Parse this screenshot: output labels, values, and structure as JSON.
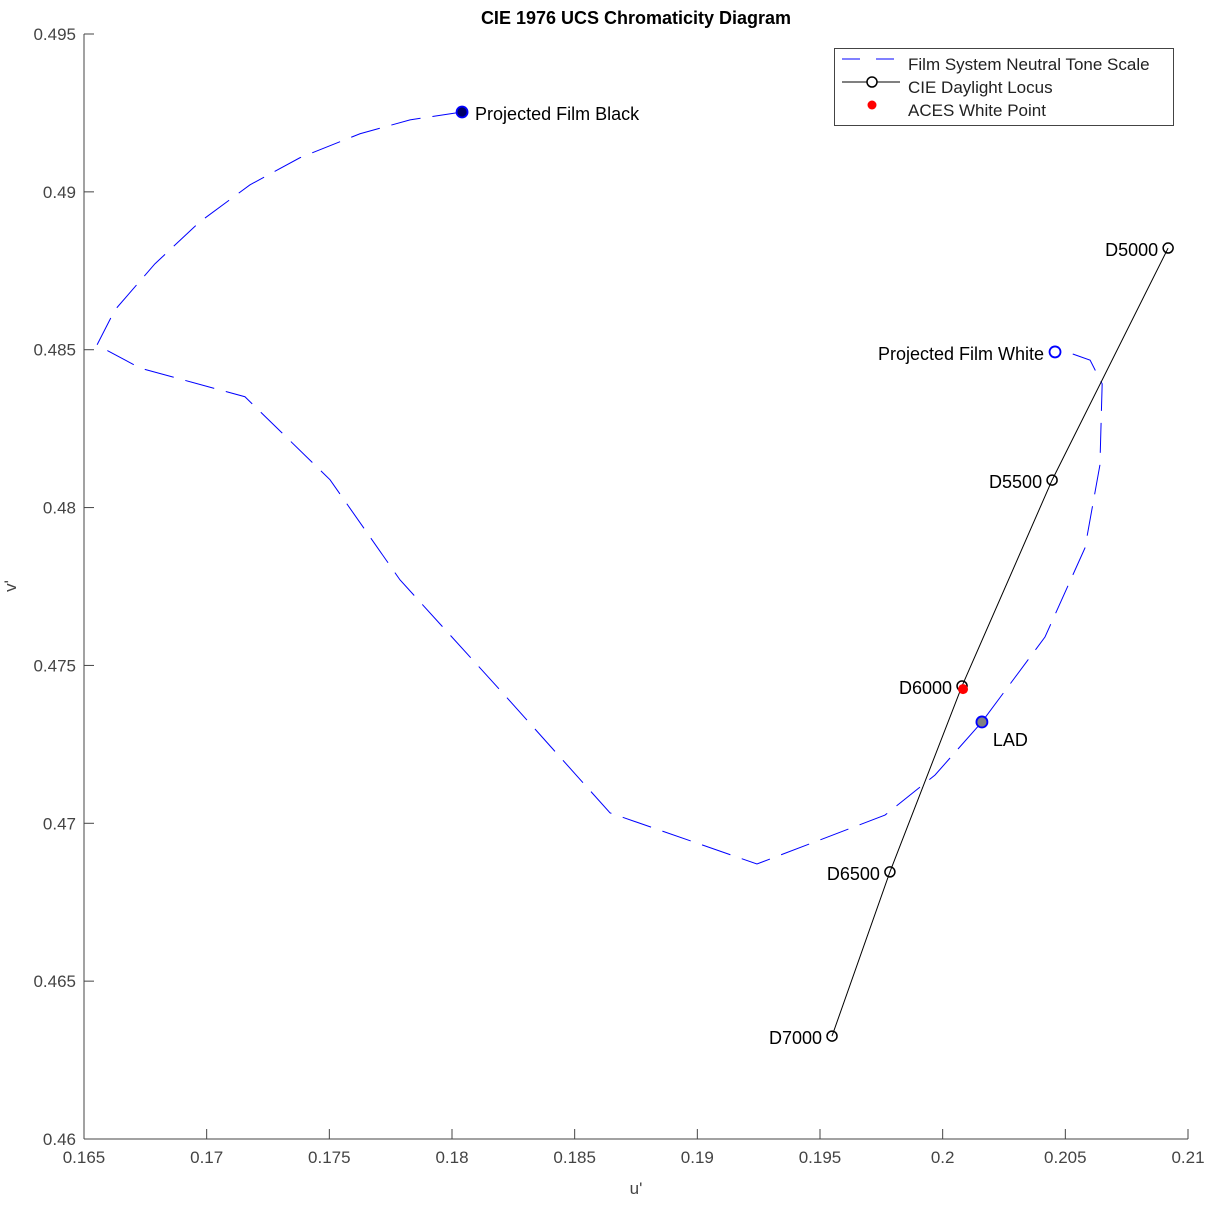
{
  "chart_data": {
    "type": "line",
    "title": "CIE 1976 UCS Chromaticity Diagram",
    "xlabel": "u'",
    "ylabel": "v'",
    "xlim": [
      0.165,
      0.21
    ],
    "ylim": [
      0.46,
      0.495
    ],
    "xticks": [
      0.165,
      0.17,
      0.175,
      0.18,
      0.185,
      0.19,
      0.195,
      0.2,
      0.205,
      0.21
    ],
    "xtick_labels": [
      "0.165",
      "0.17",
      "0.175",
      "0.18",
      "0.185",
      "0.19",
      "0.195",
      "0.2",
      "0.205",
      "0.21"
    ],
    "yticks": [
      0.46,
      0.465,
      0.47,
      0.475,
      0.48,
      0.485,
      0.49,
      0.495
    ],
    "ytick_labels": [
      "0.46",
      "0.465",
      "0.47",
      "0.475",
      "0.48",
      "0.485",
      "0.49",
      "0.495"
    ],
    "grid": false,
    "legend": {
      "placement": "top-right",
      "entries": [
        "Film System Neutral Tone Scale",
        "CIE Daylight Locus",
        "ACES White Point"
      ]
    },
    "series": [
      {
        "name": "Film System Neutral Tone Scale",
        "color": "#0000ff",
        "style": "dashed",
        "u": [
          0.18041,
          0.17829,
          0.17625,
          0.1738,
          0.17176,
          0.16972,
          0.16789,
          0.16626,
          0.16553,
          0.16728,
          0.17156,
          0.17503,
          0.17788,
          0.18196,
          0.18644,
          0.19243,
          0.19765,
          0.19969,
          0.2016,
          0.20417,
          0.2058,
          0.20641,
          0.2065,
          0.2065,
          0.20601,
          0.20528,
          0.20458
        ],
        "v": [
          0.49253,
          0.49228,
          0.49184,
          0.49108,
          0.49022,
          0.48905,
          0.48772,
          0.48626,
          0.48515,
          0.48442,
          0.48351,
          0.48088,
          0.47771,
          0.47422,
          0.47033,
          0.46871,
          0.47026,
          0.47153,
          0.47321,
          0.4759,
          0.47872,
          0.48135,
          0.48388,
          0.48392,
          0.48467,
          0.48487,
          0.48493
        ]
      },
      {
        "name": "CIE Daylight Locus",
        "color": "#000000",
        "style": "solid-circle-markers",
        "labels": [
          "D5000",
          "D5500",
          "D6000",
          "D6500",
          "D7000"
        ],
        "u": [
          0.20919,
          0.20446,
          0.20079,
          0.19785,
          0.19549
        ],
        "v": [
          0.48822,
          0.48087,
          0.47435,
          0.46846,
          0.46326
        ]
      },
      {
        "name": "ACES White Point",
        "color": "#ff0000",
        "style": "dot",
        "u": [
          0.20083
        ],
        "v": [
          0.47425
        ]
      }
    ],
    "annotations": [
      {
        "text": "Projected Film Black",
        "u": 0.18041,
        "v": 0.49253,
        "marker_fill": "#000066",
        "marker_edge": "#0000ff",
        "side": "right"
      },
      {
        "text": "Projected Film White",
        "u": 0.20458,
        "v": 0.48493,
        "marker_fill": "#ffffff",
        "marker_edge": "#0000ff",
        "side": "left"
      },
      {
        "text": "LAD",
        "u": 0.2016,
        "v": 0.47321,
        "marker_fill": "#808080",
        "marker_edge": "#0000ff",
        "side": "below-right"
      }
    ]
  }
}
